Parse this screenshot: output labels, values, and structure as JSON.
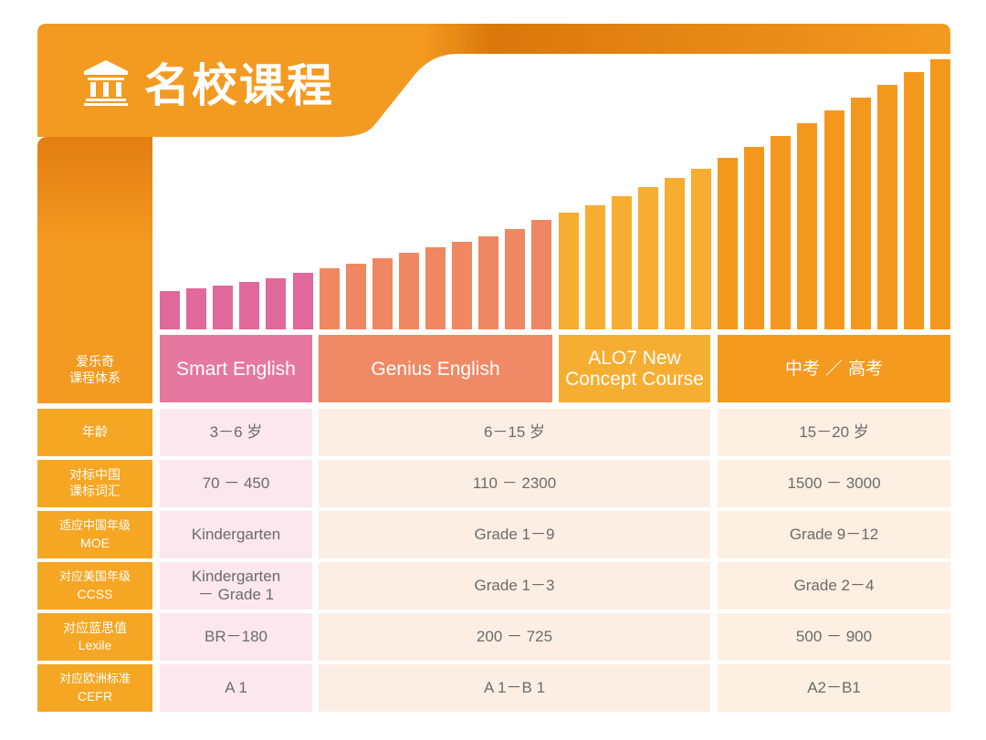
{
  "header": {
    "title": "名校课程",
    "icon": "institution-icon",
    "colors": {
      "banner": "#f39a21",
      "banner_dark": "#d9780c"
    }
  },
  "programs": {
    "label_line1": "爱乐奇",
    "label_line2": "课程体系",
    "items": [
      {
        "name": "Smart English",
        "color": "#e5789f"
      },
      {
        "name_line1": "Genius English",
        "color": "#ef8966"
      },
      {
        "name_line1": "ALO7 New",
        "name_line2": "Concept Course",
        "color": "#f6ae32"
      },
      {
        "name": "中考 ／ 高考",
        "color": "#f39a1f"
      }
    ]
  },
  "rows": [
    {
      "label_line1": "年龄",
      "label_line2": "",
      "smart": "3－6 岁",
      "middle": "6－15 岁",
      "exam": "15－20 岁"
    },
    {
      "label_line1": "对标中国",
      "label_line2": "课标词汇",
      "smart": "70 － 450",
      "middle": "110 － 2300",
      "exam": "1500 － 3000"
    },
    {
      "label_line1": "适应中国年级",
      "label_line2": "MOE",
      "smart": "Kindergarten",
      "middle": "Grade  1－9",
      "exam": "Grade  9－12"
    },
    {
      "label_line1": "对应美国年级",
      "label_line2": "CCSS",
      "smart_line1": "Kindergarten",
      "smart_line2": "－ Grade 1",
      "middle": "Grade  1－3",
      "exam": "Grade  2－4"
    },
    {
      "label_line1": "对应蓝思值",
      "label_line2": "Lexile",
      "smart": "BR－180",
      "middle": "200 － 725",
      "exam": "500 － 900"
    },
    {
      "label_line1": "对应欧洲标准",
      "label_line2": "CEFR",
      "smart": "A 1",
      "middle": "A 1－B 1",
      "exam": "A2－B1"
    }
  ],
  "chart_data": {
    "type": "bar",
    "groups": [
      {
        "program": "Smart English",
        "bars": 6,
        "color": "#e0689a"
      },
      {
        "program": "Genius English",
        "bars": 9,
        "color": "#ef8762"
      },
      {
        "program": "ALO7 New Concept Course",
        "bars": 6,
        "color": "#f6ad30"
      },
      {
        "program": "中考 ／ 高考",
        "bars": 9,
        "color": "#f4981d"
      }
    ],
    "values": [
      42,
      45,
      48,
      52,
      56,
      62,
      67,
      72,
      78,
      84,
      90,
      96,
      102,
      110,
      120,
      128,
      136,
      146,
      156,
      166,
      176,
      188,
      200,
      212,
      226,
      240,
      254,
      268,
      282,
      296
    ]
  }
}
